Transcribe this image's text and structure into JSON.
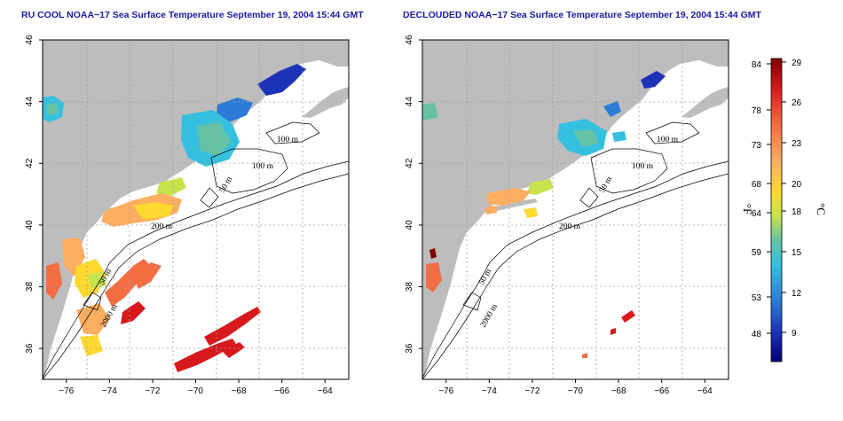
{
  "titles": {
    "left": "RU COOL NOAA−17 Sea Surface Temperature September 19, 2004 15:44 GMT",
    "right": "DECLOUDED NOAA−17 Sea Surface Temperature September 19, 2004 15:44 GMT"
  },
  "axes": {
    "lon_ticks": [
      -76,
      -74,
      -72,
      -70,
      -68,
      -66,
      -64
    ],
    "lat_ticks": [
      36,
      38,
      40,
      42,
      44,
      46
    ],
    "lon_range": [
      -77.1,
      -62.9
    ],
    "lat_range": [
      35.0,
      46.0
    ]
  },
  "contour_labels": [
    "100 m",
    "100 m",
    "50 m",
    "200 m",
    "50 m",
    "2000 m"
  ],
  "colorbar": {
    "unit_f": "°F",
    "unit_c": "°C",
    "f_ticks": [
      "84",
      "78",
      "73",
      "68",
      "64",
      "59",
      "53",
      "48"
    ],
    "c_ticks": [
      "29",
      "26",
      "23",
      "20",
      "18",
      "15",
      "12",
      "9"
    ],
    "colors": [
      "#7f0000",
      "#d7191c",
      "#f46d43",
      "#fdae61",
      "#ffd92f",
      "#c6e34b",
      "#66c2a5",
      "#35c0e0",
      "#2c7bd6",
      "#1c33b8",
      "#00007a"
    ]
  },
  "colors": {
    "land": "#bdbdbd",
    "ocean": "#ffffff",
    "title": "#1a1aa6",
    "grid": "#a0a0a0"
  }
}
